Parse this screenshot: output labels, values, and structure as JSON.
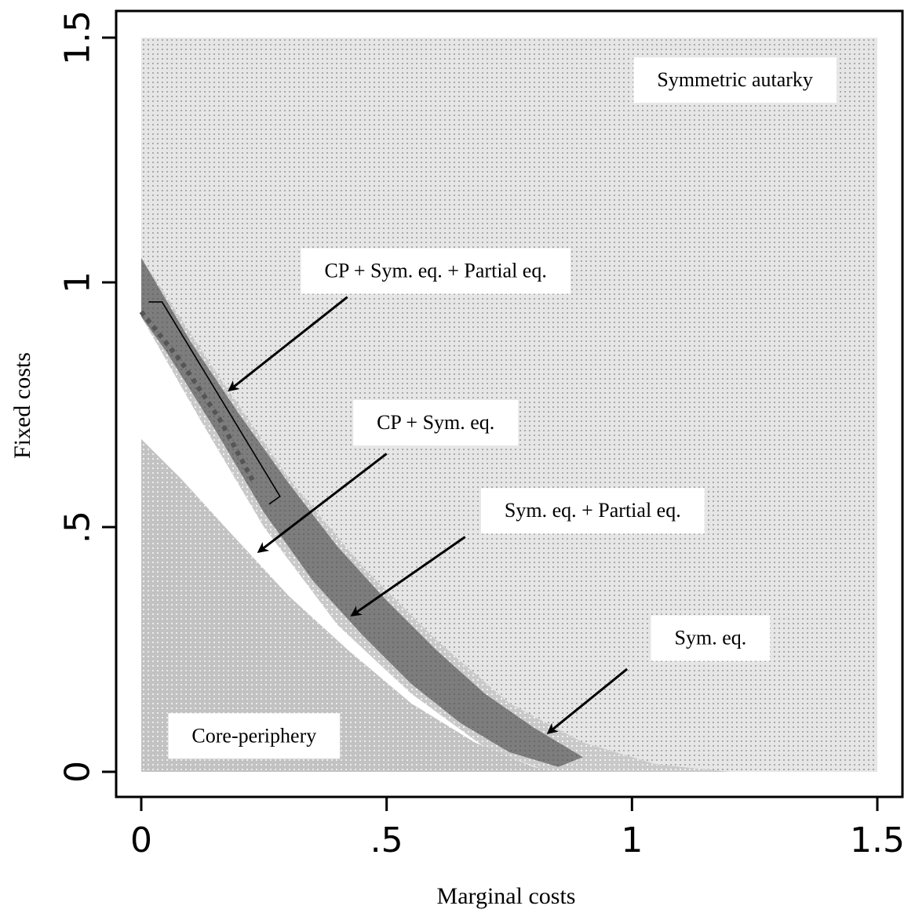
{
  "chart_data": {
    "type": "area",
    "xlabel": "Marginal costs",
    "ylabel": "Fixed costs",
    "xlim": [
      0,
      1.5
    ],
    "ylim": [
      0,
      1.5
    ],
    "xticks": [
      {
        "value": 0,
        "label": "0"
      },
      {
        "value": 0.5,
        "label": ".5"
      },
      {
        "value": 1,
        "label": "1"
      },
      {
        "value": 1.5,
        "label": "1.5"
      }
    ],
    "yticks": [
      {
        "value": 0,
        "label": "0"
      },
      {
        "value": 0.5,
        "label": ".5"
      },
      {
        "value": 1,
        "label": "1"
      },
      {
        "value": 1.5,
        "label": "1.5"
      }
    ],
    "regions": [
      {
        "label": "Symmetric autarky",
        "color": "#d4d4d4",
        "boundary": [
          [
            0,
            1.5
          ],
          [
            1.5,
            1.5
          ],
          [
            1.5,
            0
          ],
          [
            1.2,
            0
          ],
          [
            0.9,
            0.02
          ],
          [
            0.7,
            0.12
          ],
          [
            0.5,
            0.3
          ],
          [
            0.3,
            0.58
          ],
          [
            0.15,
            0.82
          ],
          [
            0,
            1.05
          ]
        ]
      },
      {
        "label": "Sym. eq.",
        "color": "#b3b3b3",
        "boundary": [
          [
            0,
            1.05
          ],
          [
            0.15,
            0.82
          ],
          [
            0.3,
            0.6
          ],
          [
            0.45,
            0.42
          ],
          [
            0.6,
            0.27
          ],
          [
            0.75,
            0.14
          ],
          [
            0.9,
            0.06
          ],
          [
            1.05,
            0.015
          ],
          [
            1.2,
            0
          ],
          [
            0.83,
            0
          ],
          [
            0.7,
            0.05
          ],
          [
            0.55,
            0.16
          ],
          [
            0.4,
            0.3
          ],
          [
            0.25,
            0.5
          ],
          [
            0.12,
            0.72
          ],
          [
            0,
            0.93
          ]
        ]
      },
      {
        "label": "Sym. eq. + Partial eq.",
        "color": "#7f7f7f",
        "boundary": [
          [
            0,
            1.05
          ],
          [
            0.1,
            0.88
          ],
          [
            0.2,
            0.73
          ],
          [
            0.3,
            0.59
          ],
          [
            0.4,
            0.46
          ],
          [
            0.5,
            0.35
          ],
          [
            0.6,
            0.25
          ],
          [
            0.7,
            0.16
          ],
          [
            0.8,
            0.09
          ],
          [
            0.9,
            0.03
          ],
          [
            0.85,
            0.01
          ],
          [
            0.75,
            0.04
          ],
          [
            0.65,
            0.1
          ],
          [
            0.55,
            0.18
          ],
          [
            0.45,
            0.28
          ],
          [
            0.35,
            0.39
          ],
          [
            0.25,
            0.53
          ],
          [
            0.15,
            0.7
          ],
          [
            0.05,
            0.86
          ],
          [
            0,
            0.93
          ]
        ]
      },
      {
        "label": "Core-periphery",
        "color": "#c4c4c4",
        "boundary": [
          [
            0,
            0
          ],
          [
            0,
            0.68
          ],
          [
            0.08,
            0.6
          ],
          [
            0.18,
            0.49
          ],
          [
            0.3,
            0.36
          ],
          [
            0.42,
            0.25
          ],
          [
            0.55,
            0.14
          ],
          [
            0.68,
            0.06
          ],
          [
            0.8,
            0.01
          ],
          [
            0.84,
            0
          ]
        ]
      }
    ],
    "dotted_line": [
      [
        0.0,
        0.94
      ],
      [
        0.08,
        0.84
      ],
      [
        0.16,
        0.72
      ],
      [
        0.23,
        0.59
      ]
    ],
    "bracket": {
      "from": [
        0.02,
        0.96
      ],
      "to": [
        0.27,
        0.55
      ]
    },
    "annotations": [
      {
        "text": "Symmetric autarky",
        "at": [
          1.21,
          1.41
        ],
        "arrow_to": null
      },
      {
        "text": "CP + Sym. eq. + Partial eq.",
        "at": [
          0.6,
          1.02
        ],
        "arrow_from": [
          0.42,
          0.97
        ],
        "arrow_to": [
          0.18,
          0.78
        ]
      },
      {
        "text": "CP + Sym. eq.",
        "at": [
          0.6,
          0.71
        ],
        "arrow_from": [
          0.5,
          0.65
        ],
        "arrow_to": [
          0.24,
          0.45
        ]
      },
      {
        "text": "Sym. eq. + Partial eq.",
        "at": [
          0.92,
          0.53
        ],
        "arrow_from": [
          0.66,
          0.48
        ],
        "arrow_to": [
          0.43,
          0.32
        ]
      },
      {
        "text": "Sym. eq.",
        "at": [
          1.16,
          0.27
        ],
        "arrow_from": [
          0.99,
          0.21
        ],
        "arrow_to": [
          0.83,
          0.08
        ]
      },
      {
        "text": "Core-periphery",
        "at": [
          0.23,
          0.07
        ],
        "arrow_to": null
      }
    ]
  }
}
